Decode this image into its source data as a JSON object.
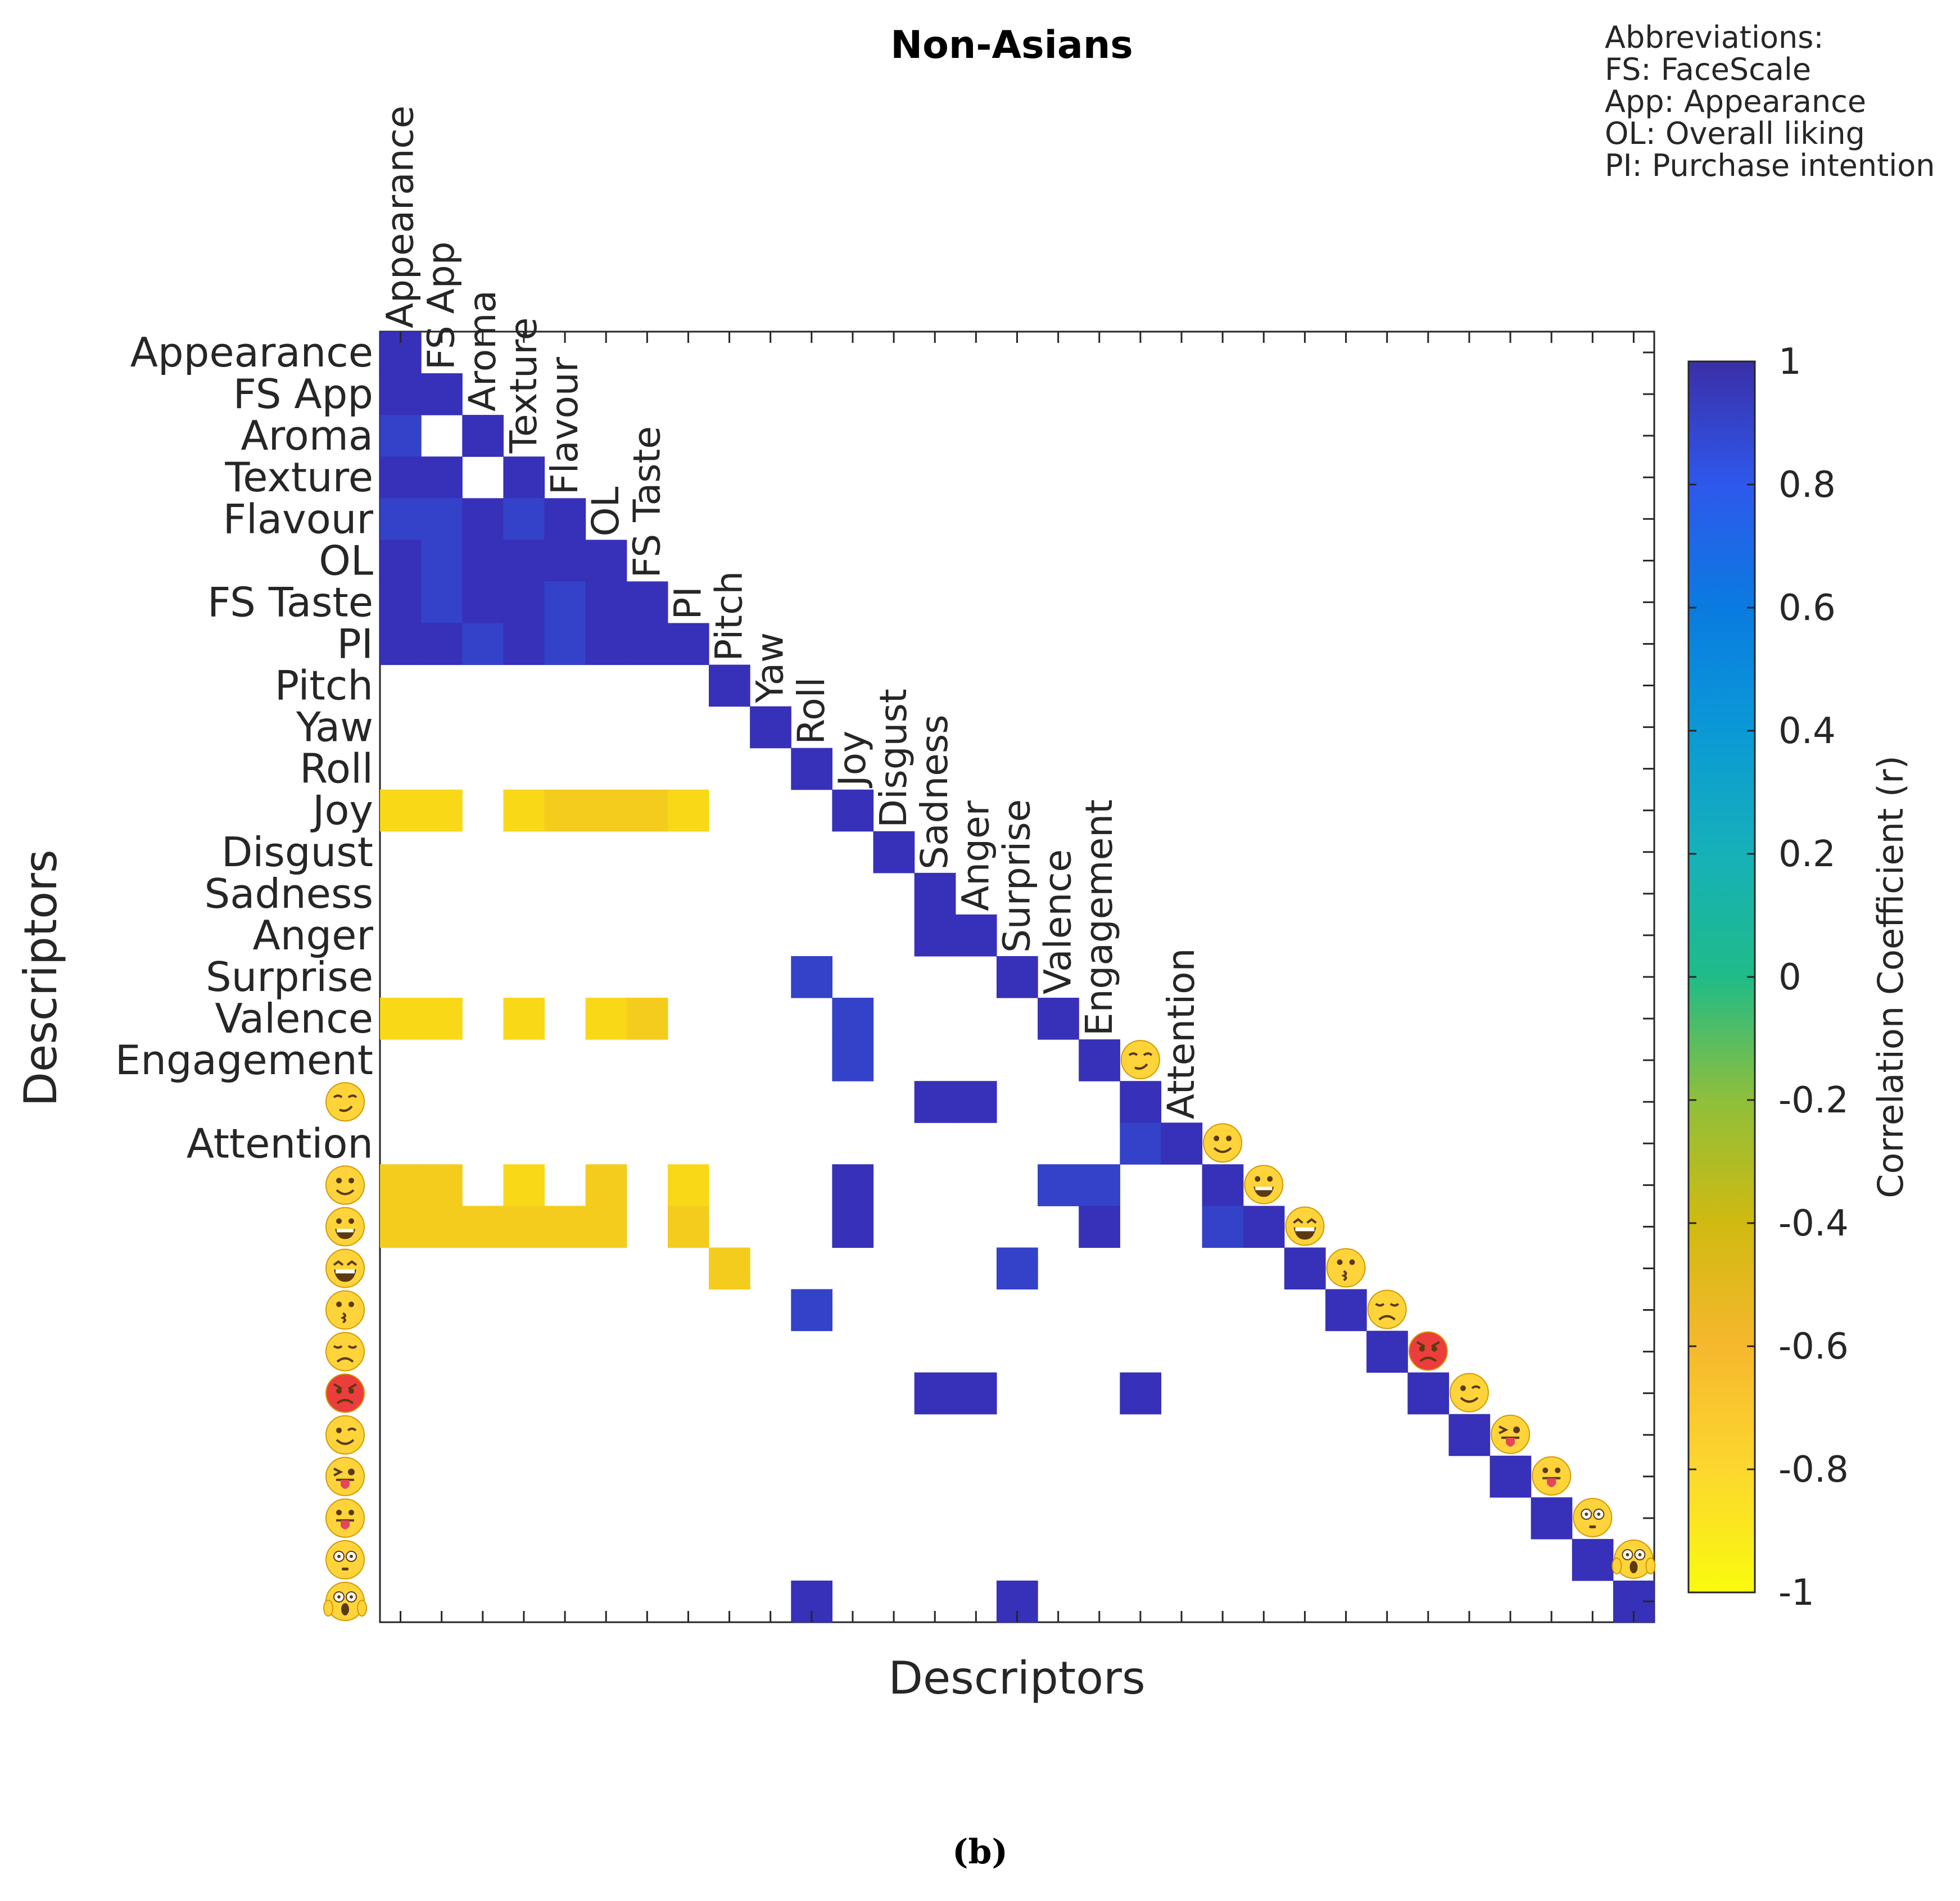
{
  "colors": {
    "pos_strong": "#3730b8",
    "pos_mid": "#3342c8",
    "neg_strong": "#f9d818",
    "neg_mid": "#f4cc1e",
    "emoji_face": "#ffd43a",
    "emoji_angry": "#ec3d3d",
    "axis": "#262626"
  },
  "abbreviations": {
    "heading": "Abbreviations:",
    "items": [
      "FS: FaceScale",
      "App: Appearance",
      "OL: Overall liking",
      "PI: Purchase intention"
    ]
  },
  "caption": "(b)",
  "chart_data": {
    "type": "heatmap",
    "title": "Non-Asians",
    "xlabel": "Descriptors",
    "ylabel": "Descriptors",
    "labels": [
      {
        "text": "Appearance",
        "kind": "text"
      },
      {
        "text": "FS App",
        "kind": "text"
      },
      {
        "text": "Aroma",
        "kind": "text"
      },
      {
        "text": "Texture",
        "kind": "text"
      },
      {
        "text": "Flavour",
        "kind": "text"
      },
      {
        "text": "OL",
        "kind": "text"
      },
      {
        "text": "FS Taste",
        "kind": "text"
      },
      {
        "text": "PI",
        "kind": "text"
      },
      {
        "text": "Pitch",
        "kind": "text"
      },
      {
        "text": "Yaw",
        "kind": "text"
      },
      {
        "text": "Roll",
        "kind": "text"
      },
      {
        "text": "Joy",
        "kind": "text"
      },
      {
        "text": "Disgust",
        "kind": "text"
      },
      {
        "text": "Sadness",
        "kind": "text"
      },
      {
        "text": "Anger",
        "kind": "text"
      },
      {
        "text": "Surprise",
        "kind": "text"
      },
      {
        "text": "Valence",
        "kind": "text"
      },
      {
        "text": "Engagement",
        "kind": "text"
      },
      {
        "text": "",
        "kind": "emoji",
        "icon": "smirk-emoji-icon"
      },
      {
        "text": "Attention",
        "kind": "text"
      },
      {
        "text": "",
        "kind": "emoji",
        "icon": "slight-smile-emoji-icon"
      },
      {
        "text": "",
        "kind": "emoji",
        "icon": "grin-emoji-icon"
      },
      {
        "text": "",
        "kind": "emoji",
        "icon": "laugh-emoji-icon"
      },
      {
        "text": "",
        "kind": "emoji",
        "icon": "kiss-emoji-icon"
      },
      {
        "text": "",
        "kind": "emoji",
        "icon": "disappointed-emoji-icon"
      },
      {
        "text": "",
        "kind": "emoji",
        "icon": "angry-emoji-icon"
      },
      {
        "text": "",
        "kind": "emoji",
        "icon": "wink-emoji-icon"
      },
      {
        "text": "",
        "kind": "emoji",
        "icon": "wink-tongue-emoji-icon"
      },
      {
        "text": "",
        "kind": "emoji",
        "icon": "tongue-emoji-icon"
      },
      {
        "text": "",
        "kind": "emoji",
        "icon": "flushed-emoji-icon"
      },
      {
        "text": "",
        "kind": "emoji",
        "icon": "scream-emoji-icon"
      }
    ],
    "significant_correlations": [
      [
        0,
        0,
        1
      ],
      [
        1,
        0,
        0.97
      ],
      [
        1,
        1,
        1
      ],
      [
        2,
        0,
        0.88
      ],
      [
        2,
        2,
        1
      ],
      [
        3,
        0,
        0.96
      ],
      [
        3,
        1,
        0.96
      ],
      [
        3,
        3,
        1
      ],
      [
        4,
        0,
        0.9
      ],
      [
        4,
        1,
        0.89
      ],
      [
        4,
        2,
        0.95
      ],
      [
        4,
        3,
        0.86
      ],
      [
        4,
        4,
        1
      ],
      [
        5,
        0,
        0.94
      ],
      [
        5,
        1,
        0.93
      ],
      [
        5,
        2,
        0.96
      ],
      [
        5,
        3,
        0.95
      ],
      [
        5,
        4,
        0.94
      ],
      [
        5,
        5,
        1
      ],
      [
        6,
        0,
        0.94
      ],
      [
        6,
        1,
        0.93
      ],
      [
        6,
        2,
        0.94
      ],
      [
        6,
        3,
        0.95
      ],
      [
        6,
        4,
        0.93
      ],
      [
        6,
        5,
        0.98
      ],
      [
        6,
        6,
        1
      ],
      [
        7,
        0,
        0.95
      ],
      [
        7,
        1,
        0.94
      ],
      [
        7,
        2,
        0.91
      ],
      [
        7,
        3,
        0.97
      ],
      [
        7,
        4,
        0.93
      ],
      [
        7,
        5,
        0.97
      ],
      [
        7,
        6,
        0.97
      ],
      [
        7,
        7,
        1
      ],
      [
        8,
        8,
        1
      ],
      [
        9,
        9,
        1
      ],
      [
        10,
        10,
        1
      ],
      [
        11,
        0,
        -0.97
      ],
      [
        11,
        1,
        -0.97
      ],
      [
        11,
        3,
        -0.96
      ],
      [
        11,
        4,
        -0.93
      ],
      [
        11,
        5,
        -0.95
      ],
      [
        11,
        6,
        -0.91
      ],
      [
        11,
        7,
        -0.97
      ],
      [
        11,
        11,
        1
      ],
      [
        12,
        12,
        1
      ],
      [
        13,
        13,
        1
      ],
      [
        14,
        13,
        0.97
      ],
      [
        14,
        14,
        1
      ],
      [
        15,
        10,
        0.9
      ],
      [
        15,
        15,
        1
      ],
      [
        16,
        0,
        -0.97
      ],
      [
        16,
        1,
        -0.97
      ],
      [
        16,
        3,
        -0.98
      ],
      [
        16,
        5,
        -0.96
      ],
      [
        16,
        6,
        -0.95
      ],
      [
        16,
        11,
        0.9
      ],
      [
        16,
        16,
        1
      ],
      [
        17,
        11,
        0.93
      ],
      [
        17,
        17,
        1
      ],
      [
        18,
        13,
        0.95
      ],
      [
        18,
        14,
        0.95
      ],
      [
        18,
        18,
        1
      ],
      [
        19,
        18,
        0.9
      ],
      [
        19,
        19,
        1
      ],
      [
        20,
        0,
        -0.95
      ],
      [
        20,
        1,
        -0.95
      ],
      [
        20,
        3,
        -0.97
      ],
      [
        20,
        5,
        -0.95
      ],
      [
        20,
        7,
        -0.96
      ],
      [
        20,
        11,
        0.96
      ],
      [
        20,
        16,
        0.89
      ],
      [
        20,
        17,
        0.89
      ],
      [
        20,
        20,
        1
      ],
      [
        21,
        0,
        -0.93
      ],
      [
        21,
        1,
        -0.93
      ],
      [
        21,
        2,
        -0.93
      ],
      [
        21,
        3,
        -0.94
      ],
      [
        21,
        4,
        -0.94
      ],
      [
        21,
        5,
        -0.94
      ],
      [
        21,
        7,
        -0.94
      ],
      [
        21,
        11,
        0.96
      ],
      [
        21,
        17,
        0.95
      ],
      [
        21,
        20,
        0.9
      ],
      [
        21,
        21,
        1
      ],
      [
        22,
        8,
        -0.95
      ],
      [
        22,
        15,
        0.87
      ],
      [
        22,
        22,
        1
      ],
      [
        23,
        10,
        0.88
      ],
      [
        23,
        23,
        1
      ],
      [
        24,
        24,
        1
      ],
      [
        25,
        13,
        0.95
      ],
      [
        25,
        14,
        0.97
      ],
      [
        25,
        18,
        0.95
      ],
      [
        25,
        25,
        1
      ],
      [
        26,
        26,
        1
      ],
      [
        27,
        27,
        1
      ],
      [
        28,
        28,
        1
      ],
      [
        29,
        29,
        1
      ],
      [
        30,
        10,
        0.95
      ],
      [
        30,
        15,
        0.96
      ],
      [
        30,
        30,
        1
      ]
    ],
    "colorbar": {
      "label": "Correlation Coefficient (r)",
      "ticks": [
        "1",
        "0.8",
        "0.6",
        "0.4",
        "0.2",
        "0",
        "-0.2",
        "-0.4",
        "-0.6",
        "-0.8",
        "-1"
      ],
      "range": [
        -1,
        1
      ]
    }
  }
}
